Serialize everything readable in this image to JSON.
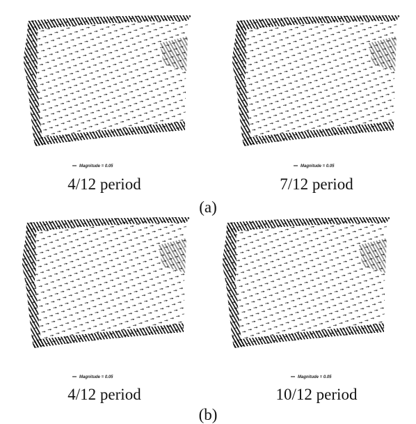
{
  "figure": {
    "groups": [
      {
        "label": "(a)",
        "panels": [
          {
            "magnitude_label": "Magnitude = 0.05",
            "caption": "4/12 period"
          },
          {
            "magnitude_label": "Magnitude = 0.05",
            "caption": "7/12 period"
          }
        ]
      },
      {
        "label": "(b)",
        "panels": [
          {
            "magnitude_label": "Magnitude = 0.05",
            "caption": "4/12 period"
          },
          {
            "magnitude_label": "Magnitude = 0.05",
            "caption": "10/12 period"
          }
        ]
      }
    ]
  }
}
